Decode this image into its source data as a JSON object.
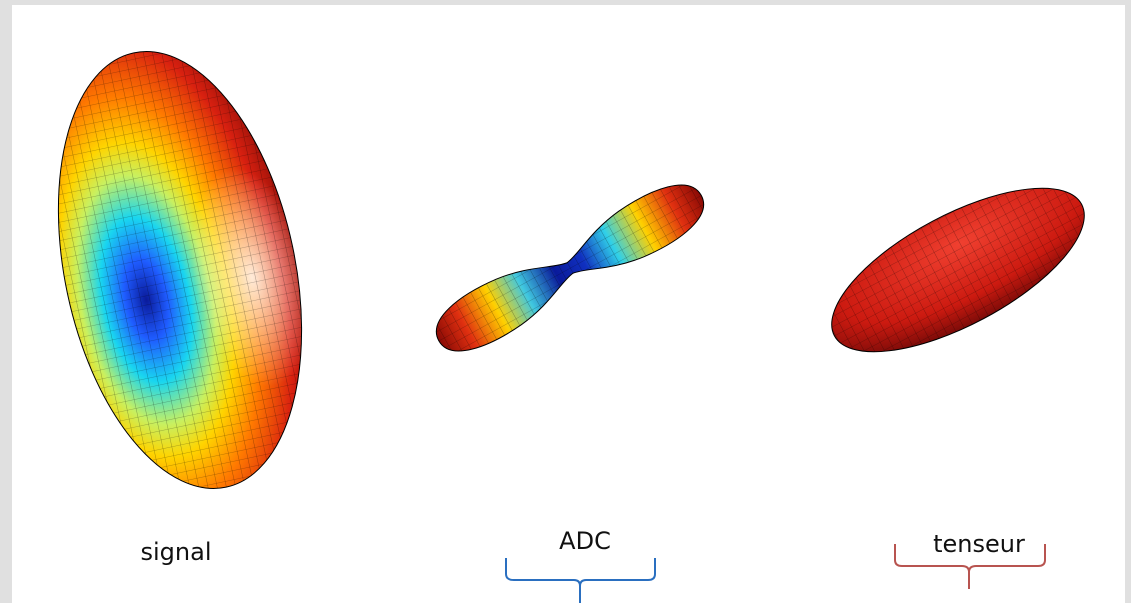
{
  "labels": {
    "signal": "signal",
    "adc": "ADC",
    "tensor": "tenseur"
  }
}
